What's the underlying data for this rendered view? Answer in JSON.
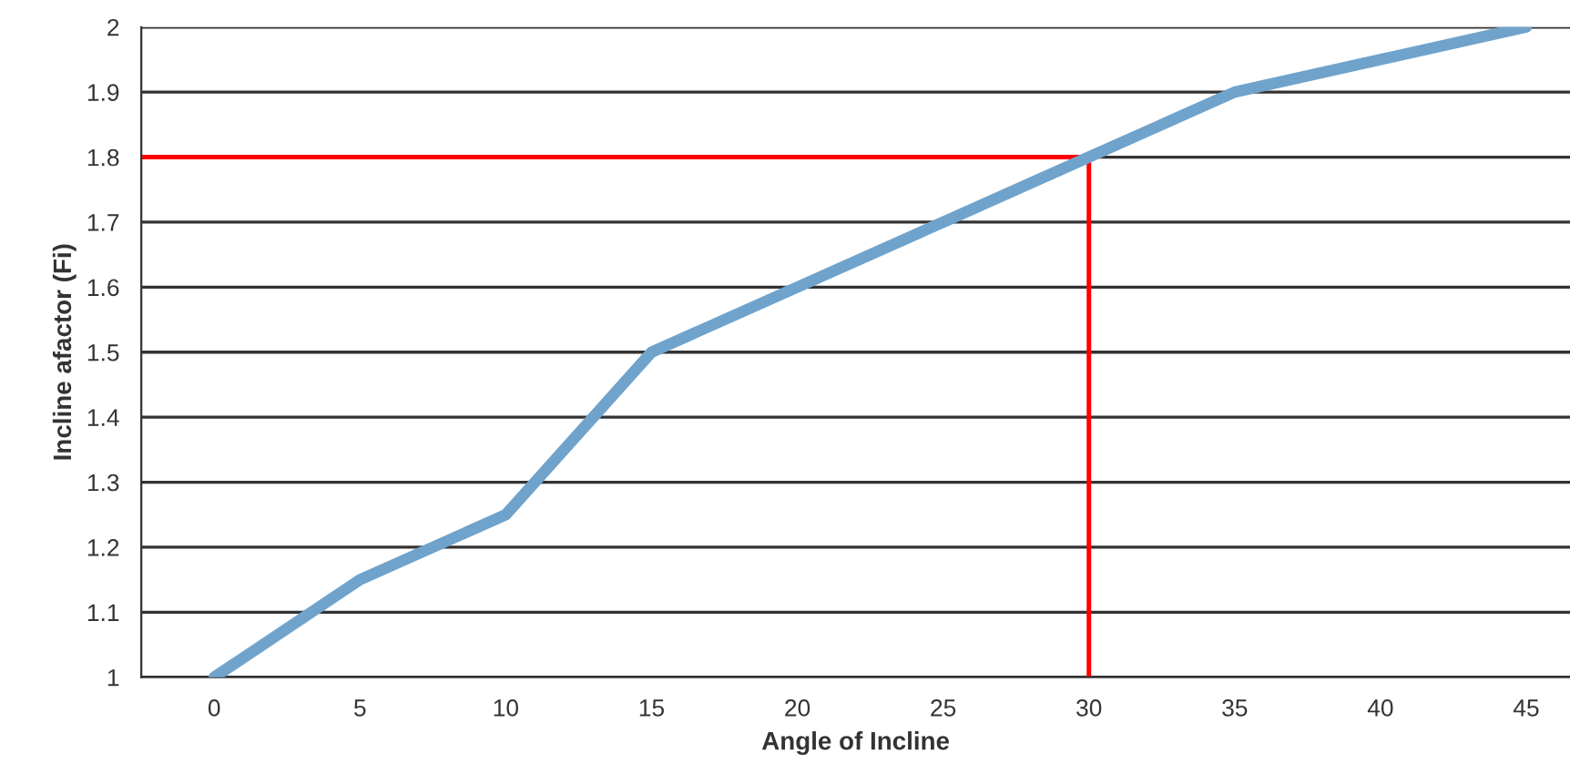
{
  "chart_data": {
    "type": "line",
    "xlabel": "Angle of Incline",
    "ylabel": "Incline afactor (Fi)",
    "x": [
      0,
      5,
      10,
      15,
      20,
      25,
      30,
      35,
      40,
      45
    ],
    "series": [
      {
        "color": "#6fa3cc",
        "values": [
          1.0,
          1.15,
          1.25,
          1.5,
          1.6,
          1.7,
          1.8,
          1.9,
          1.95,
          2.0
        ]
      }
    ],
    "xlim": [
      -2.5,
      46.5
    ],
    "xticks": [
      0,
      5,
      10,
      15,
      20,
      25,
      30,
      35,
      40,
      45
    ],
    "ylim": [
      1,
      2
    ],
    "yticks": [
      1,
      1.1,
      1.2,
      1.3,
      1.4,
      1.5,
      1.6,
      1.7,
      1.8,
      1.9,
      2
    ],
    "ref_lines": [
      {
        "axis": "y",
        "value": 1.8,
        "color": "#ff0000"
      },
      {
        "axis": "x",
        "value": 30,
        "color": "#ff0000"
      }
    ],
    "grid": "y",
    "legend": false,
    "marker": "none",
    "line_style": "solid"
  }
}
